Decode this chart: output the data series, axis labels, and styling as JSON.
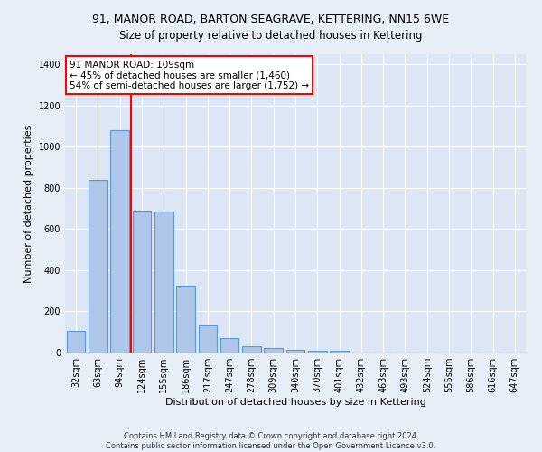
{
  "title_line1": "91, MANOR ROAD, BARTON SEAGRAVE, KETTERING, NN15 6WE",
  "title_line2": "Size of property relative to detached houses in Kettering",
  "xlabel": "Distribution of detached houses by size in Kettering",
  "ylabel": "Number of detached properties",
  "footnote": "Contains HM Land Registry data © Crown copyright and database right 2024.\nContains public sector information licensed under the Open Government Licence v3.0.",
  "categories": [
    "32sqm",
    "63sqm",
    "94sqm",
    "124sqm",
    "155sqm",
    "186sqm",
    "217sqm",
    "247sqm",
    "278sqm",
    "309sqm",
    "340sqm",
    "370sqm",
    "401sqm",
    "432sqm",
    "463sqm",
    "493sqm",
    "524sqm",
    "555sqm",
    "586sqm",
    "616sqm",
    "647sqm"
  ],
  "values": [
    105,
    840,
    1080,
    690,
    685,
    325,
    130,
    70,
    30,
    20,
    15,
    10,
    10,
    0,
    0,
    0,
    0,
    0,
    0,
    0,
    0
  ],
  "bar_color": "#aec6e8",
  "bar_edge_color": "#5b9bd5",
  "vline_x": 2.5,
  "vline_color": "red",
  "annotation_text": "91 MANOR ROAD: 109sqm\n← 45% of detached houses are smaller (1,460)\n54% of semi-detached houses are larger (1,752) →",
  "annotation_box_color": "white",
  "annotation_box_edge": "red",
  "ylim": [
    0,
    1450
  ],
  "yticks": [
    0,
    200,
    400,
    600,
    800,
    1000,
    1200,
    1400
  ],
  "background_color": "#e8eef7",
  "plot_background": "#dce6f5",
  "grid_color": "white",
  "title_fontsize": 9,
  "subtitle_fontsize": 8.5,
  "axis_label_fontsize": 8,
  "tick_fontsize": 7,
  "annot_fontsize": 7.5,
  "footnote_fontsize": 6
}
